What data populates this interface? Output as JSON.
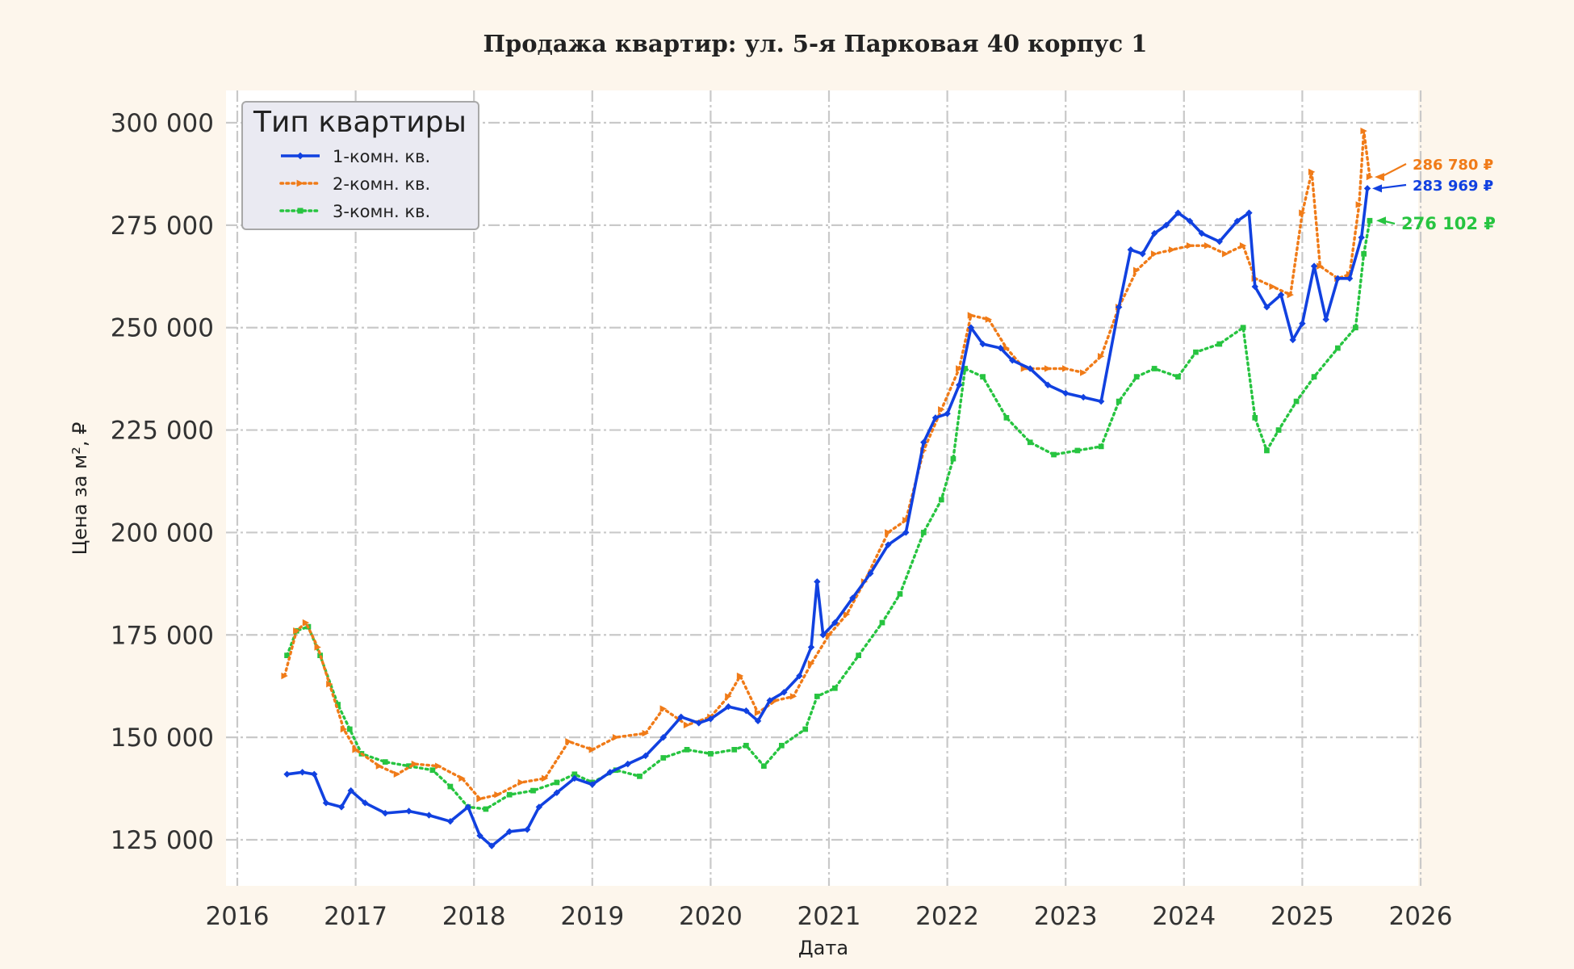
{
  "chart_data": {
    "type": "line",
    "title": "Продажа квартир: ул. 5-я Парковая 40 корпус 1",
    "xlabel": "Дата",
    "ylabel": "Цена за м², ₽",
    "xlim": [
      2016.0,
      2026.0
    ],
    "ylim": [
      115000,
      308000
    ],
    "x_ticks": [
      2016,
      2017,
      2018,
      2019,
      2020,
      2021,
      2022,
      2023,
      2024,
      2025,
      2026
    ],
    "x_tick_labels": [
      "2016",
      "2017",
      "2018",
      "2019",
      "2020",
      "2021",
      "2022",
      "2023",
      "2024",
      "2025",
      "2026"
    ],
    "y_ticks": [
      125000,
      150000,
      175000,
      200000,
      225000,
      250000,
      275000,
      300000
    ],
    "y_tick_labels": [
      "125 000",
      "150 000",
      "175 000",
      "200 000",
      "225 000",
      "250 000",
      "275 000",
      "300 000"
    ],
    "grid": true,
    "legend": {
      "title": "Тип квартиры",
      "position": "top-left"
    },
    "series": [
      {
        "name": "1-комн. кв.",
        "color": "#1141e0",
        "linestyle": "solid",
        "marker": "diamond",
        "points": [
          [
            2016.42,
            141000
          ],
          [
            2016.55,
            141500
          ],
          [
            2016.65,
            141000
          ],
          [
            2016.75,
            134000
          ],
          [
            2016.88,
            133000
          ],
          [
            2016.96,
            137000
          ],
          [
            2017.08,
            134000
          ],
          [
            2017.25,
            131500
          ],
          [
            2017.45,
            132000
          ],
          [
            2017.62,
            131000
          ],
          [
            2017.8,
            129500
          ],
          [
            2017.95,
            133000
          ],
          [
            2018.05,
            126000
          ],
          [
            2018.15,
            123500
          ],
          [
            2018.3,
            127000
          ],
          [
            2018.45,
            127500
          ],
          [
            2018.55,
            133000
          ],
          [
            2018.7,
            136500
          ],
          [
            2018.85,
            140000
          ],
          [
            2019.0,
            138500
          ],
          [
            2019.15,
            141500
          ],
          [
            2019.3,
            143500
          ],
          [
            2019.45,
            145500
          ],
          [
            2019.6,
            150000
          ],
          [
            2019.75,
            155000
          ],
          [
            2019.9,
            153500
          ],
          [
            2020.0,
            154500
          ],
          [
            2020.15,
            157500
          ],
          [
            2020.3,
            156500
          ],
          [
            2020.4,
            154000
          ],
          [
            2020.5,
            159000
          ],
          [
            2020.62,
            161000
          ],
          [
            2020.75,
            165000
          ],
          [
            2020.85,
            172000
          ],
          [
            2020.9,
            188000
          ],
          [
            2020.95,
            175000
          ],
          [
            2021.05,
            178000
          ],
          [
            2021.2,
            184000
          ],
          [
            2021.35,
            190000
          ],
          [
            2021.5,
            197000
          ],
          [
            2021.65,
            200000
          ],
          [
            2021.8,
            222000
          ],
          [
            2021.9,
            228000
          ],
          [
            2022.0,
            229000
          ],
          [
            2022.1,
            236000
          ],
          [
            2022.2,
            250000
          ],
          [
            2022.3,
            246000
          ],
          [
            2022.45,
            245000
          ],
          [
            2022.55,
            242000
          ],
          [
            2022.7,
            240000
          ],
          [
            2022.85,
            236000
          ],
          [
            2023.0,
            234000
          ],
          [
            2023.15,
            233000
          ],
          [
            2023.3,
            232000
          ],
          [
            2023.45,
            255000
          ],
          [
            2023.55,
            269000
          ],
          [
            2023.65,
            268000
          ],
          [
            2023.75,
            273000
          ],
          [
            2023.85,
            275000
          ],
          [
            2023.95,
            278000
          ],
          [
            2024.05,
            276000
          ],
          [
            2024.15,
            273000
          ],
          [
            2024.3,
            271000
          ],
          [
            2024.45,
            276000
          ],
          [
            2024.55,
            278000
          ],
          [
            2024.6,
            260000
          ],
          [
            2024.7,
            255000
          ],
          [
            2024.82,
            258000
          ],
          [
            2024.92,
            247000
          ],
          [
            2025.0,
            251000
          ],
          [
            2025.1,
            265000
          ],
          [
            2025.2,
            252000
          ],
          [
            2025.3,
            262000
          ],
          [
            2025.4,
            262000
          ],
          [
            2025.5,
            272000
          ],
          [
            2025.55,
            283969
          ]
        ]
      },
      {
        "name": "2-комн. кв.",
        "color": "#f07b18",
        "linestyle": "dotted",
        "marker": "triangle",
        "points": [
          [
            2016.4,
            165000
          ],
          [
            2016.5,
            176000
          ],
          [
            2016.58,
            178000
          ],
          [
            2016.68,
            172000
          ],
          [
            2016.78,
            163000
          ],
          [
            2016.9,
            152000
          ],
          [
            2017.0,
            147000
          ],
          [
            2017.2,
            143000
          ],
          [
            2017.35,
            141000
          ],
          [
            2017.5,
            143500
          ],
          [
            2017.7,
            143000
          ],
          [
            2017.9,
            140000
          ],
          [
            2018.05,
            135000
          ],
          [
            2018.2,
            136000
          ],
          [
            2018.4,
            139000
          ],
          [
            2018.6,
            140000
          ],
          [
            2018.8,
            149000
          ],
          [
            2019.0,
            147000
          ],
          [
            2019.2,
            150000
          ],
          [
            2019.45,
            151000
          ],
          [
            2019.6,
            157000
          ],
          [
            2019.8,
            153000
          ],
          [
            2020.0,
            155000
          ],
          [
            2020.15,
            160000
          ],
          [
            2020.25,
            165000
          ],
          [
            2020.4,
            156000
          ],
          [
            2020.55,
            159000
          ],
          [
            2020.7,
            160000
          ],
          [
            2020.85,
            168000
          ],
          [
            2021.0,
            175000
          ],
          [
            2021.15,
            180000
          ],
          [
            2021.3,
            188000
          ],
          [
            2021.5,
            200000
          ],
          [
            2021.65,
            203000
          ],
          [
            2021.8,
            220000
          ],
          [
            2021.95,
            230000
          ],
          [
            2022.1,
            240000
          ],
          [
            2022.2,
            253000
          ],
          [
            2022.35,
            252000
          ],
          [
            2022.5,
            245000
          ],
          [
            2022.65,
            240000
          ],
          [
            2022.85,
            240000
          ],
          [
            2023.0,
            240000
          ],
          [
            2023.15,
            239000
          ],
          [
            2023.3,
            243000
          ],
          [
            2023.45,
            255000
          ],
          [
            2023.6,
            264000
          ],
          [
            2023.75,
            268000
          ],
          [
            2023.9,
            269000
          ],
          [
            2024.05,
            270000
          ],
          [
            2024.2,
            270000
          ],
          [
            2024.35,
            268000
          ],
          [
            2024.5,
            270000
          ],
          [
            2024.6,
            262000
          ],
          [
            2024.75,
            260000
          ],
          [
            2024.9,
            258000
          ],
          [
            2025.0,
            278000
          ],
          [
            2025.08,
            288000
          ],
          [
            2025.15,
            265000
          ],
          [
            2025.3,
            262000
          ],
          [
            2025.4,
            263000
          ],
          [
            2025.48,
            280000
          ],
          [
            2025.52,
            298000
          ],
          [
            2025.57,
            286780
          ]
        ]
      },
      {
        "name": "3-комн. кв.",
        "color": "#27c440",
        "linestyle": "dotted",
        "marker": "square",
        "points": [
          [
            2016.42,
            170000
          ],
          [
            2016.5,
            176000
          ],
          [
            2016.6,
            177000
          ],
          [
            2016.7,
            170000
          ],
          [
            2016.85,
            158000
          ],
          [
            2016.95,
            152000
          ],
          [
            2017.05,
            146000
          ],
          [
            2017.25,
            144000
          ],
          [
            2017.45,
            143000
          ],
          [
            2017.65,
            142000
          ],
          [
            2017.8,
            138000
          ],
          [
            2017.95,
            133000
          ],
          [
            2018.1,
            132500
          ],
          [
            2018.3,
            136000
          ],
          [
            2018.5,
            137000
          ],
          [
            2018.7,
            139000
          ],
          [
            2018.85,
            141000
          ],
          [
            2019.0,
            139000
          ],
          [
            2019.2,
            142000
          ],
          [
            2019.4,
            140500
          ],
          [
            2019.6,
            145000
          ],
          [
            2019.8,
            147000
          ],
          [
            2020.0,
            146000
          ],
          [
            2020.2,
            147000
          ],
          [
            2020.3,
            148000
          ],
          [
            2020.45,
            143000
          ],
          [
            2020.6,
            148000
          ],
          [
            2020.8,
            152000
          ],
          [
            2020.9,
            160000
          ],
          [
            2021.05,
            162000
          ],
          [
            2021.25,
            170000
          ],
          [
            2021.45,
            178000
          ],
          [
            2021.6,
            185000
          ],
          [
            2021.8,
            200000
          ],
          [
            2021.95,
            208000
          ],
          [
            2022.05,
            218000
          ],
          [
            2022.15,
            240000
          ],
          [
            2022.3,
            238000
          ],
          [
            2022.5,
            228000
          ],
          [
            2022.7,
            222000
          ],
          [
            2022.9,
            219000
          ],
          [
            2023.1,
            220000
          ],
          [
            2023.3,
            221000
          ],
          [
            2023.45,
            232000
          ],
          [
            2023.6,
            238000
          ],
          [
            2023.75,
            240000
          ],
          [
            2023.95,
            238000
          ],
          [
            2024.1,
            244000
          ],
          [
            2024.3,
            246000
          ],
          [
            2024.5,
            250000
          ],
          [
            2024.6,
            228000
          ],
          [
            2024.7,
            220000
          ],
          [
            2024.8,
            225000
          ],
          [
            2024.95,
            232000
          ],
          [
            2025.1,
            238000
          ],
          [
            2025.3,
            245000
          ],
          [
            2025.45,
            250000
          ],
          [
            2025.52,
            268000
          ],
          [
            2025.57,
            276102
          ]
        ]
      }
    ],
    "annotations": [
      {
        "series": "2-комн. кв.",
        "label": "286 780 ₽",
        "value": 286780,
        "color": "#f07b18"
      },
      {
        "series": "1-комн. кв.",
        "label": "283 969 ₽",
        "value": 283969,
        "color": "#1141e0"
      },
      {
        "series": "3-комн. кв.",
        "label": "276 102 ₽",
        "value": 276102,
        "color": "#27c440"
      }
    ]
  }
}
